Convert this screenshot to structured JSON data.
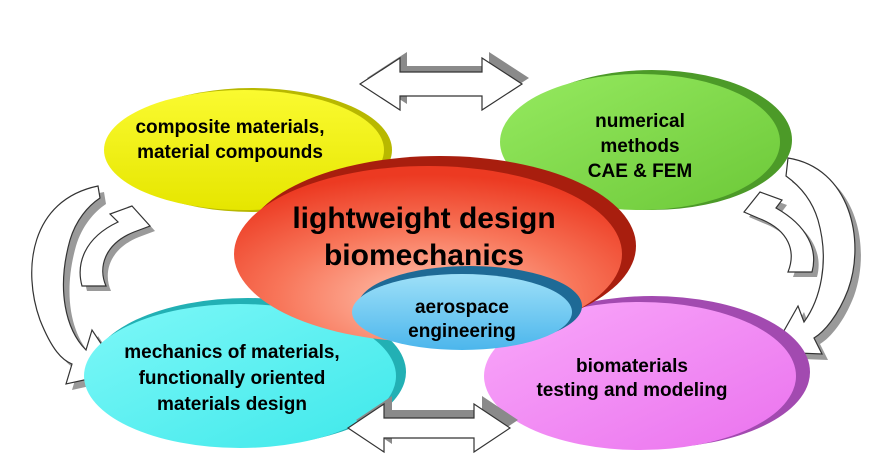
{
  "diagram": {
    "center": {
      "lines": [
        "lightweight design",
        "biomechanics"
      ]
    },
    "inner": {
      "lines": [
        "aerospace",
        "engineering"
      ]
    },
    "top_left": {
      "lines": [
        "composite materials,",
        "material compounds"
      ]
    },
    "top_right": {
      "lines": [
        "numerical",
        "methods",
        "CAE & FEM"
      ]
    },
    "bottom_left": {
      "lines": [
        "mechanics of materials,",
        "functionally oriented",
        "materials design"
      ]
    },
    "bottom_right": {
      "lines": [
        "biomaterials",
        "testing and modeling"
      ]
    }
  },
  "colors": {
    "yellow": "#f2f200",
    "green": "#86e04e",
    "cyan": "#66f4f4",
    "pink": "#f48cf6",
    "red": "#f25a3c",
    "blue": "#58c8f0",
    "arrow_fill": "#ffffff",
    "arrow_shadow": "#8a8a8a"
  }
}
